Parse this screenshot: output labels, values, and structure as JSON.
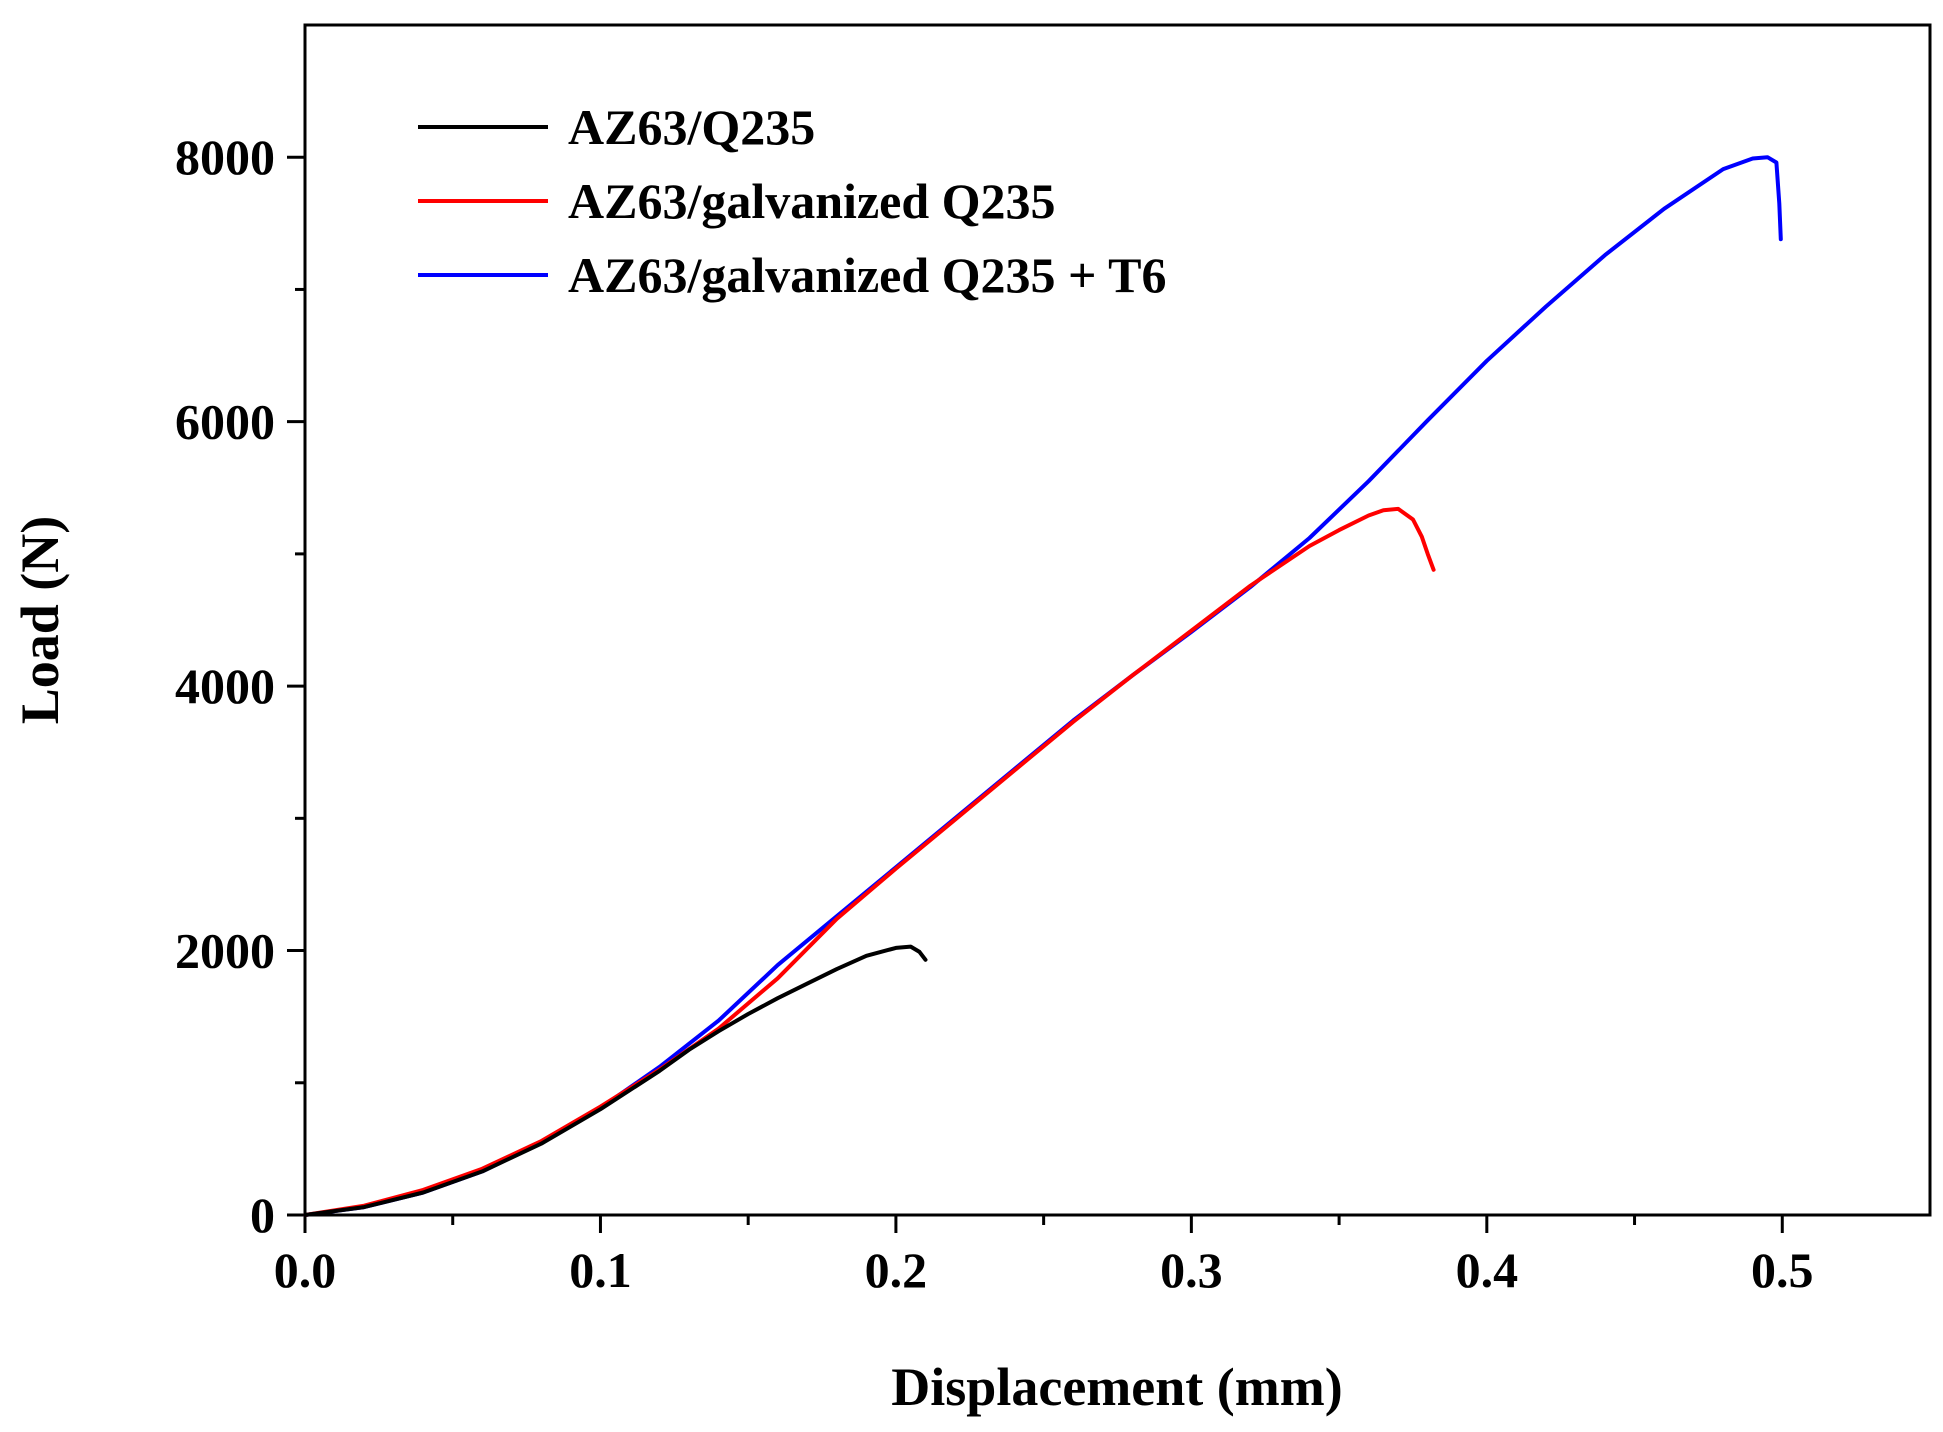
{
  "chart_data": {
    "type": "line",
    "title": "",
    "xlabel": "Displacement (mm)",
    "ylabel": "Load (N)",
    "xlim": [
      0.0,
      0.55
    ],
    "ylim": [
      0,
      9000
    ],
    "x_ticks": [
      0.0,
      0.1,
      0.2,
      0.3,
      0.4,
      0.5
    ],
    "x_tick_labels": [
      "0.0",
      "0.1",
      "0.2",
      "0.3",
      "0.4",
      "0.5"
    ],
    "x_minor_ticks": [
      0.05,
      0.15,
      0.25,
      0.35,
      0.45
    ],
    "y_ticks": [
      0,
      2000,
      4000,
      6000,
      8000
    ],
    "y_tick_labels": [
      "0",
      "2000",
      "4000",
      "6000",
      "8000"
    ],
    "y_minor_ticks": [
      1000,
      3000,
      5000,
      7000
    ],
    "grid": false,
    "legend_position": "top-left",
    "series": [
      {
        "name": "AZ63/Q235",
        "color": "#000000",
        "x": [
          0.0,
          0.02,
          0.04,
          0.06,
          0.08,
          0.1,
          0.12,
          0.13,
          0.14,
          0.15,
          0.16,
          0.17,
          0.18,
          0.19,
          0.2,
          0.205,
          0.208,
          0.21
        ],
        "y": [
          0,
          60,
          170,
          330,
          540,
          800,
          1090,
          1250,
          1390,
          1520,
          1640,
          1750,
          1860,
          1960,
          2020,
          2030,
          1990,
          1930
        ]
      },
      {
        "name": "AZ63/galvanized Q235",
        "color": "#ff0000",
        "x": [
          0.0,
          0.02,
          0.04,
          0.06,
          0.08,
          0.1,
          0.12,
          0.14,
          0.16,
          0.18,
          0.2,
          0.22,
          0.24,
          0.26,
          0.28,
          0.3,
          0.32,
          0.34,
          0.35,
          0.36,
          0.365,
          0.37,
          0.375,
          0.378,
          0.38,
          0.382
        ],
        "y": [
          0,
          70,
          190,
          350,
          560,
          820,
          1100,
          1410,
          1790,
          2240,
          2620,
          2990,
          3360,
          3730,
          4080,
          4420,
          4760,
          5060,
          5180,
          5290,
          5330,
          5340,
          5260,
          5130,
          5000,
          4880
        ]
      },
      {
        "name": "AZ63/galvanized Q235 + T6",
        "color": "#0000ff",
        "x": [
          0.0,
          0.02,
          0.04,
          0.06,
          0.08,
          0.1,
          0.12,
          0.14,
          0.16,
          0.18,
          0.2,
          0.22,
          0.24,
          0.26,
          0.28,
          0.3,
          0.32,
          0.34,
          0.36,
          0.38,
          0.4,
          0.42,
          0.44,
          0.46,
          0.48,
          0.49,
          0.495,
          0.498,
          0.499,
          0.4995
        ],
        "y": [
          0,
          60,
          170,
          330,
          550,
          810,
          1120,
          1470,
          1890,
          2260,
          2630,
          3000,
          3370,
          3740,
          4080,
          4410,
          4750,
          5120,
          5550,
          6010,
          6460,
          6870,
          7260,
          7610,
          7910,
          7990,
          8000,
          7960,
          7650,
          7380
        ]
      }
    ]
  }
}
